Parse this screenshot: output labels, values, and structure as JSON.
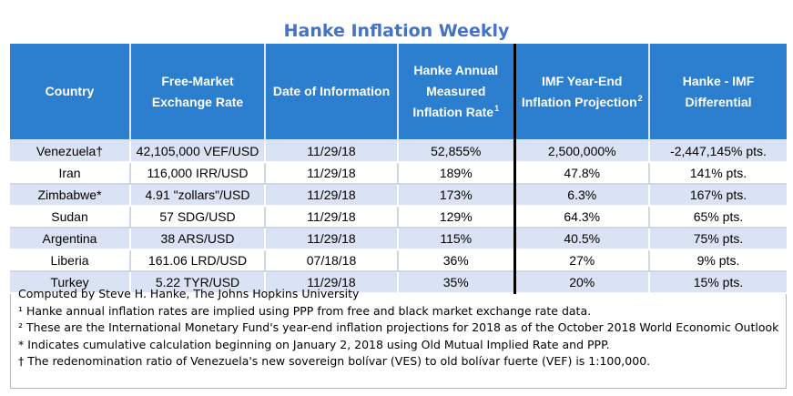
{
  "title": "Hanke Inflation Weekly",
  "chart_data": {
    "type": "table",
    "title": "Hanke Inflation Weekly",
    "columns": [
      {
        "label": "Country",
        "sup": ""
      },
      {
        "label": "Free-Market Exchange Rate",
        "sup": ""
      },
      {
        "label": "Date of Information",
        "sup": ""
      },
      {
        "label": "Hanke Annual Measured Inflation Rate",
        "sup": "1"
      },
      {
        "label": "IMF Year-End Inflation Projection",
        "sup": "2"
      },
      {
        "label": "Hanke - IMF Differential",
        "sup": ""
      }
    ],
    "rows": [
      [
        "Venezuela†",
        "42,105,000 VEF/USD",
        "11/29/18",
        "52,855%",
        "2,500,000%",
        "-2,447,145% pts."
      ],
      [
        "Iran",
        "116,000 IRR/USD",
        "11/29/18",
        "189%",
        "47.8%",
        "141% pts."
      ],
      [
        "Zimbabwe*",
        "4.91 \"zollars\"/USD",
        "11/29/18",
        "173%",
        "6.3%",
        "167% pts."
      ],
      [
        "Sudan",
        "57 SDG/USD",
        "11/29/18",
        "129%",
        "64.3%",
        "65% pts."
      ],
      [
        "Argentina",
        "38 ARS/USD",
        "11/29/18",
        "115%",
        "40.5%",
        "75% pts."
      ],
      [
        "Liberia",
        "161.06 LRD/USD",
        "07/18/18",
        "36%",
        "27%",
        "9% pts."
      ],
      [
        "Turkey",
        "5.22 TYR/USD",
        "11/29/18",
        "35%",
        "20%",
        "15% pts."
      ]
    ]
  },
  "notes": [
    "Computed by Steve H. Hanke, The Johns Hopkins University",
    "¹ Hanke annual inflation rates are implied using PPP from free and black market exchange rate data.",
    "² These are the International Monetary Fund's year-end inflation projections for 2018 as of the October 2018 World Economic Outlook",
    "* Indicates cumulative calculation beginning on January 2, 2018 using Old Mutual Implied Rate and PPP.",
    "† The redenomination ratio of Venezuela's new sovereign bolívar (VES) to old bolívar fuerte (VEF) is 1:100,000."
  ],
  "colors": {
    "header": "#2c7fcf",
    "title": "#4472c4",
    "row_band": "#dae3f3",
    "separator": "#000000"
  }
}
